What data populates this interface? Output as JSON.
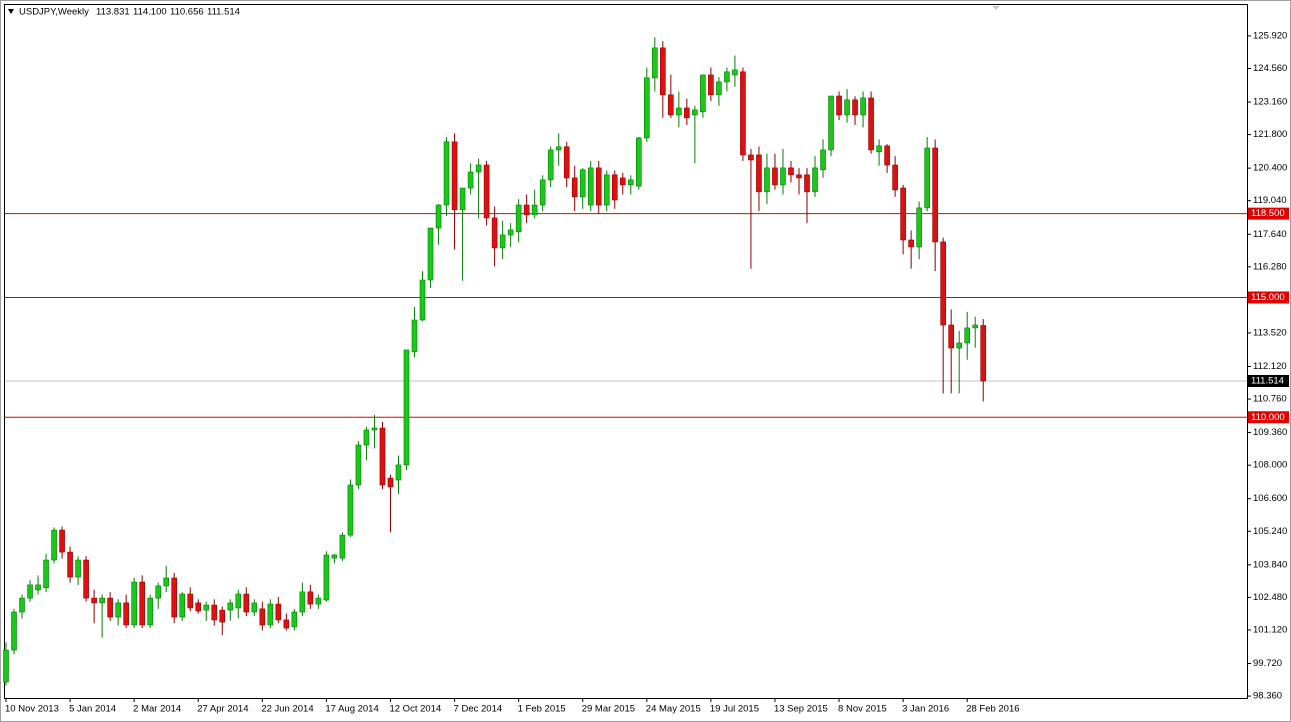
{
  "chart_data": {
    "type": "candlestick",
    "symbol": "USDJPY,Weekly",
    "ohlc_labels": [
      "113.831",
      "114.100",
      "110.656",
      "111.514"
    ],
    "up_color": "#19c819",
    "down_color": "#e01010",
    "ylim": [
      98.28,
      127.21
    ],
    "yticks": [
      {
        "value": 125.92,
        "label": "125.920"
      },
      {
        "value": 124.56,
        "label": "124.560"
      },
      {
        "value": 123.16,
        "label": "123.160"
      },
      {
        "value": 121.8,
        "label": "121.800"
      },
      {
        "value": 120.4,
        "label": "120.400"
      },
      {
        "value": 119.04,
        "label": "119.040"
      },
      {
        "value": 117.64,
        "label": "117.640"
      },
      {
        "value": 116.28,
        "label": "116.280"
      },
      {
        "value": 114.88,
        "label": "114.880"
      },
      {
        "value": 113.52,
        "label": "113.520"
      },
      {
        "value": 112.12,
        "label": "112.120"
      },
      {
        "value": 110.76,
        "label": "110.760"
      },
      {
        "value": 109.36,
        "label": "109.360"
      },
      {
        "value": 108,
        "label": "108.000"
      },
      {
        "value": 106.6,
        "label": "106.600"
      },
      {
        "value": 105.24,
        "label": "105.240"
      },
      {
        "value": 103.84,
        "label": "103.840"
      },
      {
        "value": 102.48,
        "label": "102.480"
      },
      {
        "value": 101.12,
        "label": "101.120"
      },
      {
        "value": 99.72,
        "label": "99.720"
      },
      {
        "value": 98.36,
        "label": "98.360"
      }
    ],
    "levels": [
      {
        "value": 118.5,
        "label": "118.500",
        "color": "#e00000"
      },
      {
        "value": 115,
        "label": "115.000",
        "color": "#e00000"
      },
      {
        "value": 110,
        "label": "110.000",
        "color": "#e00000"
      }
    ],
    "bid": {
      "value": 111.514,
      "label": "111.514",
      "color": "#c0c0c0"
    },
    "categories": [
      "10 Nov 2013",
      null,
      null,
      null,
      null,
      null,
      null,
      null,
      "5 Jan 2014",
      null,
      null,
      null,
      null,
      null,
      null,
      null,
      "2 Mar 2014",
      null,
      null,
      null,
      null,
      null,
      null,
      null,
      "27 Apr 2014",
      null,
      null,
      null,
      null,
      null,
      null,
      null,
      "22 Jun 2014",
      null,
      null,
      null,
      null,
      null,
      null,
      null,
      "17 Aug 2014",
      null,
      null,
      null,
      null,
      null,
      null,
      null,
      "12 Oct 2014",
      null,
      null,
      null,
      null,
      null,
      null,
      null,
      "7 Dec 2014",
      null,
      null,
      null,
      null,
      null,
      null,
      null,
      "1 Feb 2015",
      null,
      null,
      null,
      null,
      null,
      null,
      null,
      "29 Mar 2015",
      null,
      null,
      null,
      null,
      null,
      null,
      null,
      "24 May 2015",
      null,
      null,
      null,
      null,
      null,
      null,
      null,
      "19 Jul 2015",
      null,
      null,
      null,
      null,
      null,
      null,
      null,
      "13 Sep 2015",
      null,
      null,
      null,
      null,
      null,
      null,
      null,
      "8 Nov 2015",
      null,
      null,
      null,
      null,
      null,
      null,
      null,
      "3 Jan 2016",
      null,
      null,
      null,
      null,
      null,
      null,
      null,
      "28 Feb 2016",
      null,
      null
    ],
    "ohlc": [
      [
        98.95,
        100.6,
        98.8,
        100.28
      ],
      [
        100.28,
        102.0,
        100.1,
        101.87
      ],
      [
        101.87,
        102.6,
        101.6,
        102.45
      ],
      [
        102.45,
        103.2,
        102.3,
        103.0
      ],
      [
        102.79,
        103.4,
        102.6,
        103.0
      ],
      [
        102.88,
        104.3,
        102.7,
        104.04
      ],
      [
        104.04,
        105.4,
        103.9,
        105.29
      ],
      [
        105.29,
        105.44,
        104.1,
        104.37
      ],
      [
        104.37,
        104.6,
        103.1,
        103.33
      ],
      [
        103.33,
        104.2,
        103.0,
        104.04
      ],
      [
        104.04,
        104.2,
        102.3,
        102.45
      ],
      [
        102.45,
        102.8,
        101.4,
        102.25
      ],
      [
        102.25,
        102.6,
        100.8,
        102.45
      ],
      [
        102.45,
        102.7,
        101.5,
        101.66
      ],
      [
        101.66,
        102.4,
        101.3,
        102.25
      ],
      [
        102.25,
        102.6,
        101.2,
        101.33
      ],
      [
        101.33,
        103.3,
        101.2,
        103.12
      ],
      [
        103.12,
        103.4,
        101.2,
        101.33
      ],
      [
        101.33,
        102.6,
        101.2,
        102.45
      ],
      [
        102.45,
        103.1,
        102.0,
        102.96
      ],
      [
        102.96,
        103.8,
        102.7,
        103.29
      ],
      [
        103.29,
        103.5,
        101.4,
        101.66
      ],
      [
        101.66,
        102.7,
        101.5,
        102.62
      ],
      [
        102.62,
        102.9,
        101.9,
        102.04
      ],
      [
        102.25,
        102.4,
        101.8,
        101.91
      ],
      [
        101.95,
        102.3,
        101.5,
        102.16
      ],
      [
        102.16,
        102.4,
        101.3,
        101.54
      ],
      [
        101.95,
        102.1,
        100.9,
        101.45
      ],
      [
        101.95,
        102.4,
        101.5,
        102.25
      ],
      [
        102.04,
        102.8,
        101.6,
        102.62
      ],
      [
        102.62,
        102.9,
        101.7,
        101.87
      ],
      [
        101.87,
        102.4,
        101.7,
        102.25
      ],
      [
        102.0,
        102.3,
        101.1,
        101.33
      ],
      [
        101.33,
        102.4,
        101.2,
        102.2
      ],
      [
        102.2,
        102.5,
        101.4,
        101.54
      ],
      [
        101.54,
        101.8,
        101.1,
        101.2
      ],
      [
        101.25,
        102.0,
        101.1,
        101.87
      ],
      [
        101.87,
        103.1,
        101.7,
        102.71
      ],
      [
        102.71,
        103.0,
        102.0,
        102.2
      ],
      [
        102.2,
        102.6,
        102.0,
        102.45
      ],
      [
        102.37,
        104.4,
        102.3,
        104.25
      ],
      [
        104.12,
        104.3,
        103.9,
        104.25
      ],
      [
        104.12,
        105.2,
        104.0,
        105.08
      ],
      [
        105.08,
        107.4,
        105.0,
        107.17
      ],
      [
        107.17,
        109.0,
        107.0,
        108.84
      ],
      [
        108.84,
        109.6,
        108.2,
        109.47
      ],
      [
        109.47,
        110.1,
        108.7,
        109.55
      ],
      [
        109.55,
        109.8,
        107.0,
        107.17
      ],
      [
        107.46,
        107.6,
        105.2,
        107.09
      ],
      [
        107.38,
        108.4,
        106.8,
        108.01
      ],
      [
        108.01,
        112.8,
        107.8,
        112.81
      ],
      [
        112.73,
        114.6,
        112.5,
        114.06
      ],
      [
        114.06,
        116.1,
        114.0,
        115.73
      ],
      [
        115.73,
        117.9,
        115.4,
        117.9
      ],
      [
        117.9,
        118.9,
        117.2,
        118.86
      ],
      [
        118.86,
        121.7,
        118.4,
        121.5
      ],
      [
        121.5,
        121.85,
        117.0,
        118.66
      ],
      [
        118.66,
        119.5,
        115.7,
        119.57
      ],
      [
        119.57,
        120.6,
        119.3,
        120.24
      ],
      [
        120.24,
        120.8,
        118.3,
        120.53
      ],
      [
        120.53,
        120.7,
        118.0,
        118.32
      ],
      [
        118.32,
        118.8,
        116.3,
        117.07
      ],
      [
        117.07,
        118.2,
        116.6,
        117.61
      ],
      [
        117.61,
        118.1,
        117.1,
        117.82
      ],
      [
        117.74,
        119.1,
        117.3,
        118.86
      ],
      [
        118.86,
        119.3,
        118.1,
        118.45
      ],
      [
        118.45,
        119.5,
        118.3,
        118.86
      ],
      [
        118.86,
        120.1,
        118.6,
        119.91
      ],
      [
        119.91,
        121.3,
        119.6,
        121.16
      ],
      [
        121.16,
        121.85,
        120.5,
        121.29
      ],
      [
        121.29,
        121.5,
        119.6,
        119.99
      ],
      [
        119.99,
        120.5,
        118.6,
        119.2
      ],
      [
        119.2,
        120.4,
        118.7,
        120.33
      ],
      [
        118.86,
        120.7,
        118.6,
        120.41
      ],
      [
        120.41,
        120.7,
        118.5,
        118.86
      ],
      [
        118.86,
        120.3,
        118.6,
        120.12
      ],
      [
        120.12,
        120.3,
        118.7,
        119.07
      ],
      [
        119.99,
        120.2,
        119.3,
        119.7
      ],
      [
        119.7,
        120.1,
        119.3,
        119.91
      ],
      [
        119.65,
        121.7,
        119.5,
        121.66
      ],
      [
        121.66,
        124.6,
        121.5,
        124.17
      ],
      [
        124.17,
        125.86,
        123.6,
        125.42
      ],
      [
        125.42,
        125.7,
        122.5,
        123.46
      ],
      [
        123.46,
        124.3,
        122.5,
        122.62
      ],
      [
        122.62,
        123.6,
        122.1,
        122.91
      ],
      [
        122.91,
        123.3,
        122.2,
        122.5
      ],
      [
        122.62,
        123.0,
        120.6,
        122.83
      ],
      [
        122.75,
        124.3,
        122.5,
        124.29
      ],
      [
        124.29,
        124.6,
        123.2,
        123.46
      ],
      [
        123.46,
        124.2,
        123.0,
        124.0
      ],
      [
        124.0,
        124.6,
        123.6,
        124.42
      ],
      [
        124.29,
        125.1,
        123.8,
        124.5
      ],
      [
        124.42,
        124.6,
        120.7,
        120.95
      ],
      [
        120.95,
        121.2,
        116.2,
        120.74
      ],
      [
        120.95,
        121.3,
        118.6,
        119.41
      ],
      [
        119.41,
        121.0,
        118.9,
        120.41
      ],
      [
        120.41,
        121.0,
        119.5,
        119.7
      ],
      [
        119.7,
        121.2,
        119.3,
        120.41
      ],
      [
        120.41,
        120.7,
        119.8,
        120.12
      ],
      [
        120.12,
        120.4,
        119.3,
        119.99
      ],
      [
        120.12,
        120.4,
        118.1,
        119.41
      ],
      [
        119.41,
        120.9,
        119.2,
        120.41
      ],
      [
        120.33,
        121.6,
        120.0,
        121.16
      ],
      [
        121.16,
        123.4,
        120.9,
        123.41
      ],
      [
        123.41,
        123.6,
        122.4,
        122.62
      ],
      [
        122.62,
        123.7,
        122.3,
        123.25
      ],
      [
        123.25,
        123.4,
        122.2,
        122.62
      ],
      [
        122.62,
        123.6,
        122.1,
        123.33
      ],
      [
        123.33,
        123.6,
        121.0,
        121.16
      ],
      [
        121.08,
        121.6,
        120.5,
        121.33
      ],
      [
        121.33,
        121.4,
        120.2,
        120.53
      ],
      [
        120.53,
        120.9,
        119.2,
        119.49
      ],
      [
        119.57,
        119.7,
        116.8,
        117.4
      ],
      [
        117.4,
        117.8,
        116.2,
        117.11
      ],
      [
        117.11,
        119.0,
        116.6,
        118.74
      ],
      [
        118.74,
        121.7,
        118.6,
        121.24
      ],
      [
        121.24,
        121.6,
        116.1,
        117.32
      ],
      [
        117.32,
        117.5,
        110.99,
        113.85
      ],
      [
        113.85,
        114.5,
        111.0,
        112.89
      ],
      [
        112.89,
        113.6,
        111.0,
        113.1
      ],
      [
        113.1,
        114.4,
        112.4,
        113.73
      ],
      [
        113.73,
        114.2,
        112.9,
        113.85
      ],
      [
        113.831,
        114.1,
        110.656,
        111.514
      ]
    ]
  }
}
